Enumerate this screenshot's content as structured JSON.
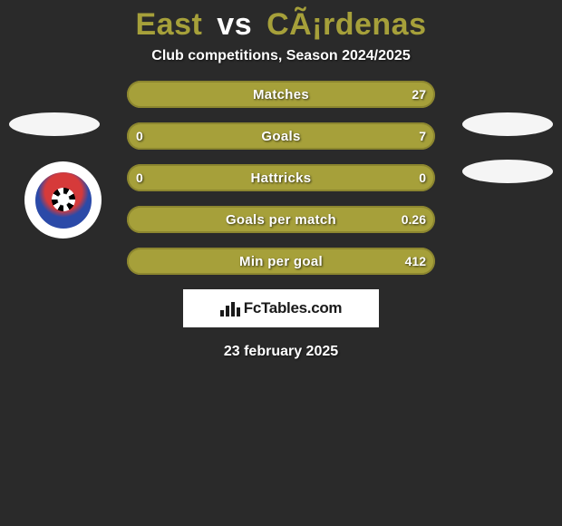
{
  "title": {
    "player1": "East",
    "vs": "vs",
    "player2": "CÃ¡rdenas",
    "player1_color": "#a6a03a",
    "player2_color": "#a6a03a"
  },
  "subtitle": "Club competitions, Season 2024/2025",
  "date": "23 february 2025",
  "branding": {
    "text": "FcTables.com"
  },
  "colors": {
    "bar_left": "#a6a03a",
    "bar_right": "#a6a03a",
    "bar_border": "#8c862f",
    "background": "#2a2a2a"
  },
  "stats": [
    {
      "label": "Matches",
      "left_value": "",
      "right_value": "27",
      "left_pct": 0,
      "right_pct": 100
    },
    {
      "label": "Goals",
      "left_value": "0",
      "right_value": "7",
      "left_pct": 3,
      "right_pct": 97
    },
    {
      "label": "Hattricks",
      "left_value": "0",
      "right_value": "0",
      "left_pct": 50,
      "right_pct": 50
    },
    {
      "label": "Goals per match",
      "left_value": "",
      "right_value": "0.26",
      "left_pct": 0,
      "right_pct": 100
    },
    {
      "label": "Min per goal",
      "left_value": "",
      "right_value": "412",
      "left_pct": 0,
      "right_pct": 100
    }
  ],
  "layout": {
    "stat_row_height": 30,
    "stat_row_gap": 16,
    "stats_width": 340
  }
}
